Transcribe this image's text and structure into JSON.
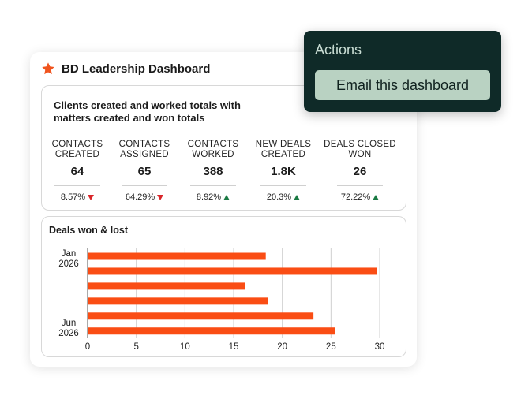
{
  "dashboard": {
    "title": "BD Leadership Dashboard",
    "star_color": "#f0541e"
  },
  "kpi_card": {
    "heading": "Clients created and worked totals with matters created and won totals",
    "metrics": [
      {
        "label": "CONTACTS CREATED",
        "value": "64",
        "change": "8.57%",
        "direction": "down"
      },
      {
        "label": "CONTACTS ASSIGNED",
        "value": "65",
        "change": "64.29%",
        "direction": "down"
      },
      {
        "label": "CONTACTS WORKED",
        "value": "388",
        "change": "8.92%",
        "direction": "up"
      },
      {
        "label": "NEW DEALS CREATED",
        "value": "1.8K",
        "change": "20.3%",
        "direction": "up"
      },
      {
        "label": "DEALS CLOSED WON",
        "value": "26",
        "change": "72.22%",
        "direction": "up"
      }
    ]
  },
  "chart_card": {
    "title": "Deals won & lost"
  },
  "chart_data": {
    "type": "bar",
    "orientation": "horizontal",
    "title": "Deals won & lost",
    "y_tick_labels": [
      [
        "Jan",
        "2026"
      ],
      [
        "Jun",
        "2026"
      ]
    ],
    "values": [
      18.3,
      29.7,
      16.2,
      18.5,
      23.2,
      25.4
    ],
    "xlim": [
      0,
      30
    ],
    "x_ticks": [
      0,
      5,
      10,
      15,
      20,
      25,
      30
    ],
    "grid": true,
    "bar_color": "#fa4d14"
  },
  "actions_menu": {
    "title": "Actions",
    "items": [
      {
        "label": "Email this dashboard"
      }
    ]
  }
}
